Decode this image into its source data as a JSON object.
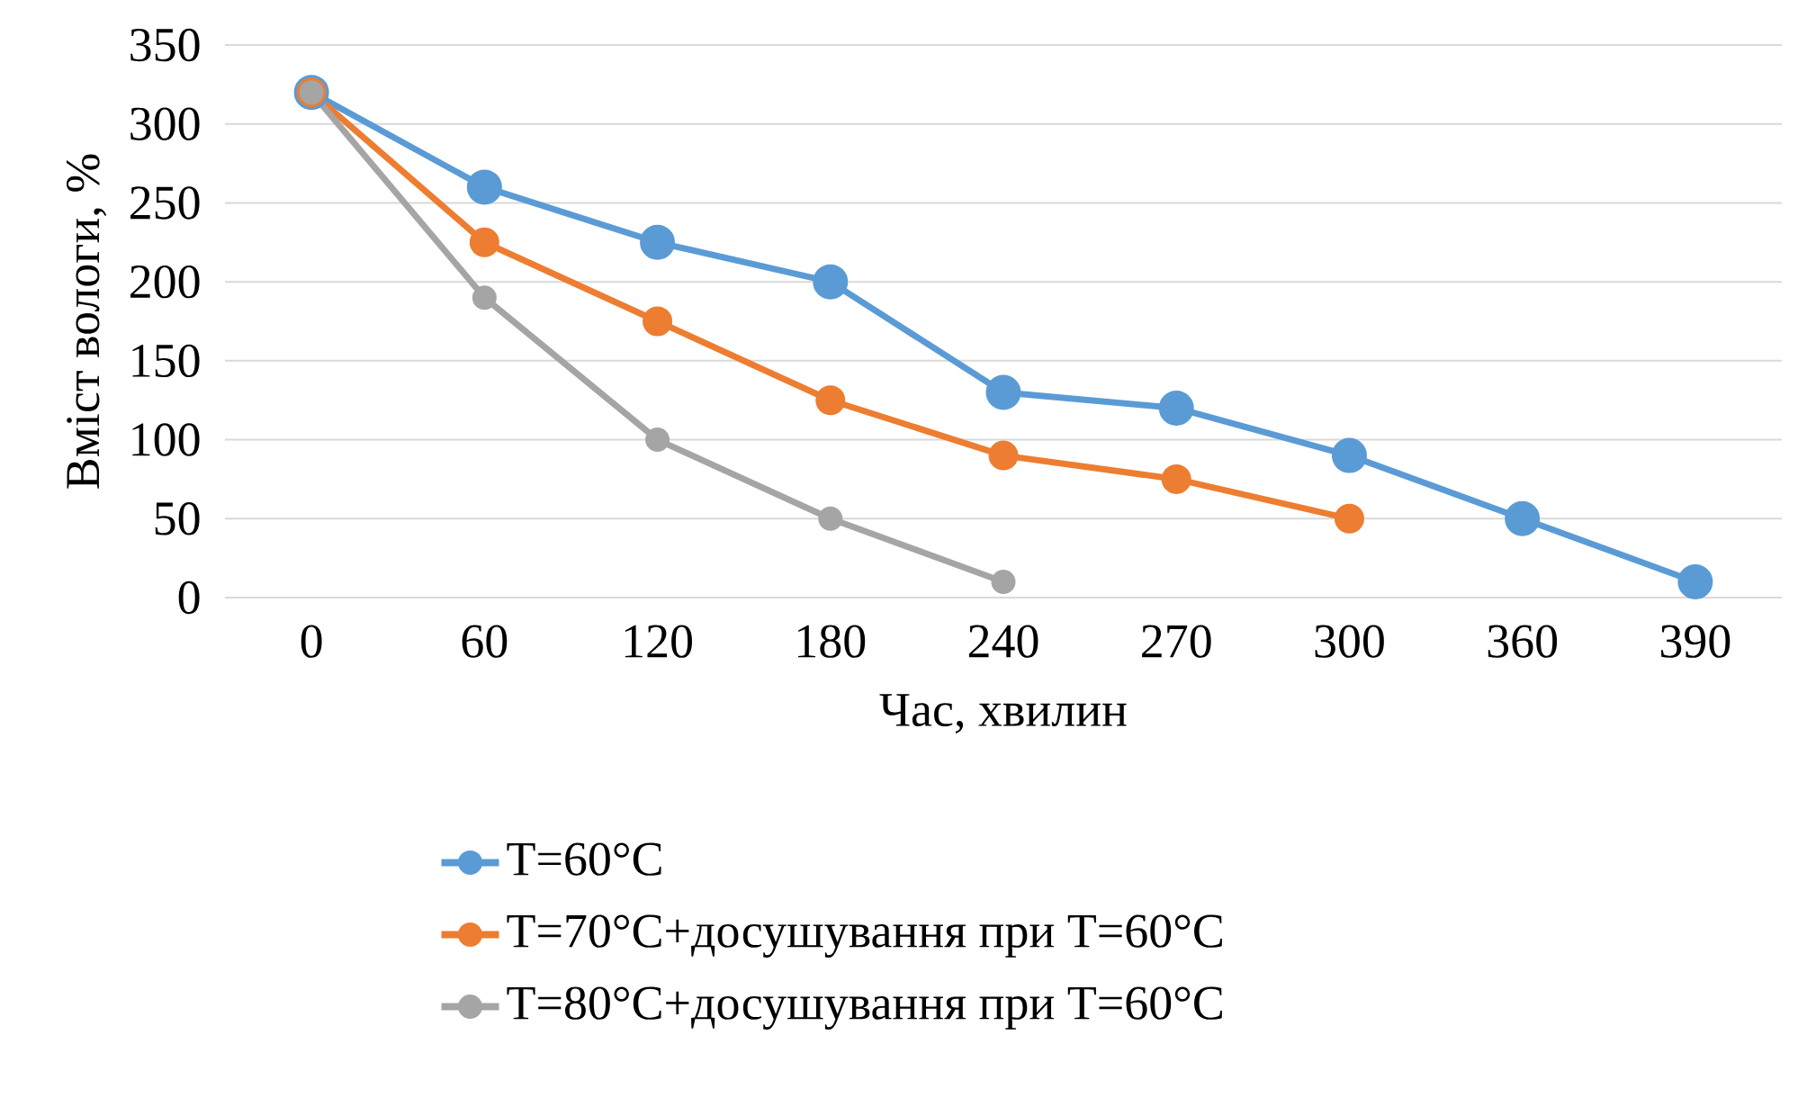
{
  "chart_data": {
    "type": "line",
    "xlabel": "Час, хвилин",
    "ylabel": "Вміст вологи, %",
    "categories": [
      "0",
      "60",
      "120",
      "180",
      "240",
      "270",
      "300",
      "360",
      "390"
    ],
    "series": [
      {
        "name": "T=60°C",
        "color": "#5b9bd5",
        "values": [
          320,
          260,
          225,
          200,
          130,
          120,
          90,
          50,
          10
        ]
      },
      {
        "name": "T=70°C+досушування  при T=60°C",
        "color": "#ed7d31",
        "values": [
          320,
          225,
          175,
          125,
          90,
          75,
          50,
          null,
          null
        ]
      },
      {
        "name": "T=80°C+досушування  при T=60°C",
        "color": "#a5a5a5",
        "values": [
          320,
          190,
          100,
          50,
          10,
          null,
          null,
          null,
          null
        ]
      }
    ],
    "ylim": [
      0,
      350
    ],
    "yticks": [
      0,
      50,
      100,
      150,
      200,
      250,
      300,
      350
    ],
    "grid": "y",
    "legend": "bottom",
    "marker": "circle",
    "line_style": "solid"
  }
}
